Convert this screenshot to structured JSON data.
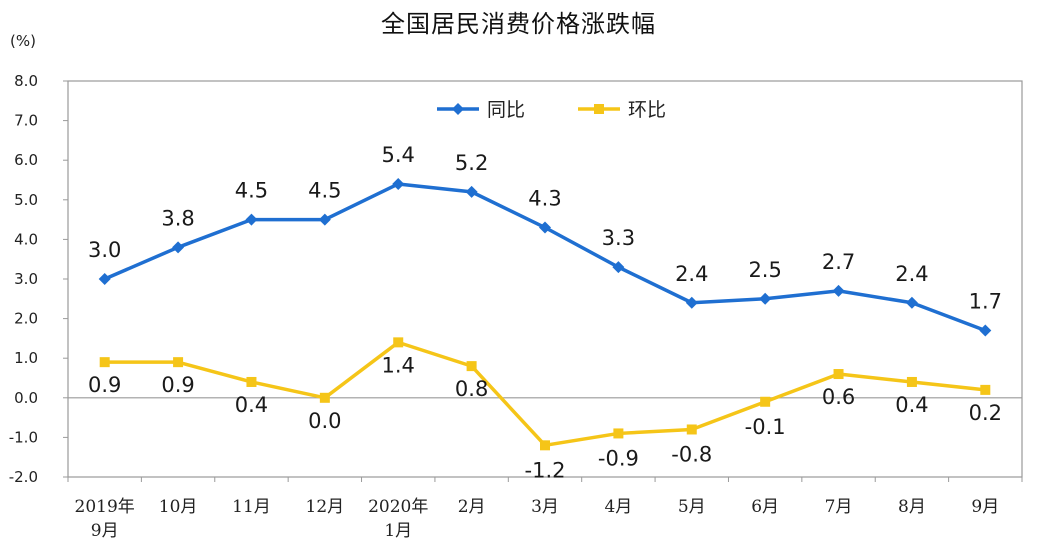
{
  "chart_data": {
    "type": "line",
    "title": "全国居民消费价格涨跌幅",
    "y_unit": "(%)",
    "ylim": [
      -2.0,
      8.0
    ],
    "y_ticks": [
      "8.0",
      "7.0",
      "6.0",
      "5.0",
      "4.0",
      "3.0",
      "2.0",
      "1.0",
      "0.0",
      "-1.0",
      "-2.0"
    ],
    "y_tick_values": [
      8,
      7,
      6,
      5,
      4,
      3,
      2,
      1,
      0,
      -1,
      -2
    ],
    "categories": [
      [
        "2019年",
        "9月"
      ],
      [
        "10月"
      ],
      [
        "11月"
      ],
      [
        "12月"
      ],
      [
        "2020年",
        "1月"
      ],
      [
        "2月"
      ],
      [
        "3月"
      ],
      [
        "4月"
      ],
      [
        "5月"
      ],
      [
        "6月"
      ],
      [
        "7月"
      ],
      [
        "8月"
      ],
      [
        "9月"
      ]
    ],
    "legend_position": "top-center",
    "series": [
      {
        "name": "同比",
        "color": "#1f6fd1",
        "marker": "diamond",
        "values": [
          3.0,
          3.8,
          4.5,
          4.5,
          5.4,
          5.2,
          4.3,
          3.3,
          2.4,
          2.5,
          2.7,
          2.4,
          1.7
        ],
        "labels": [
          "3.0",
          "3.8",
          "4.5",
          "4.5",
          "5.4",
          "5.2",
          "4.3",
          "3.3",
          "2.4",
          "2.5",
          "2.7",
          "2.4",
          "1.7"
        ]
      },
      {
        "name": "环比",
        "color": "#f5c518",
        "marker": "square",
        "values": [
          0.9,
          0.9,
          0.4,
          0.0,
          1.4,
          0.8,
          -1.2,
          -0.9,
          -0.8,
          -0.1,
          0.6,
          0.4,
          0.2
        ],
        "labels": [
          "0.9",
          "0.9",
          "0.4",
          "0.0",
          "1.4",
          "0.8",
          "-1.2",
          "-0.9",
          "-0.8",
          "-0.1",
          "0.6",
          "0.4",
          "0.2"
        ]
      }
    ]
  }
}
